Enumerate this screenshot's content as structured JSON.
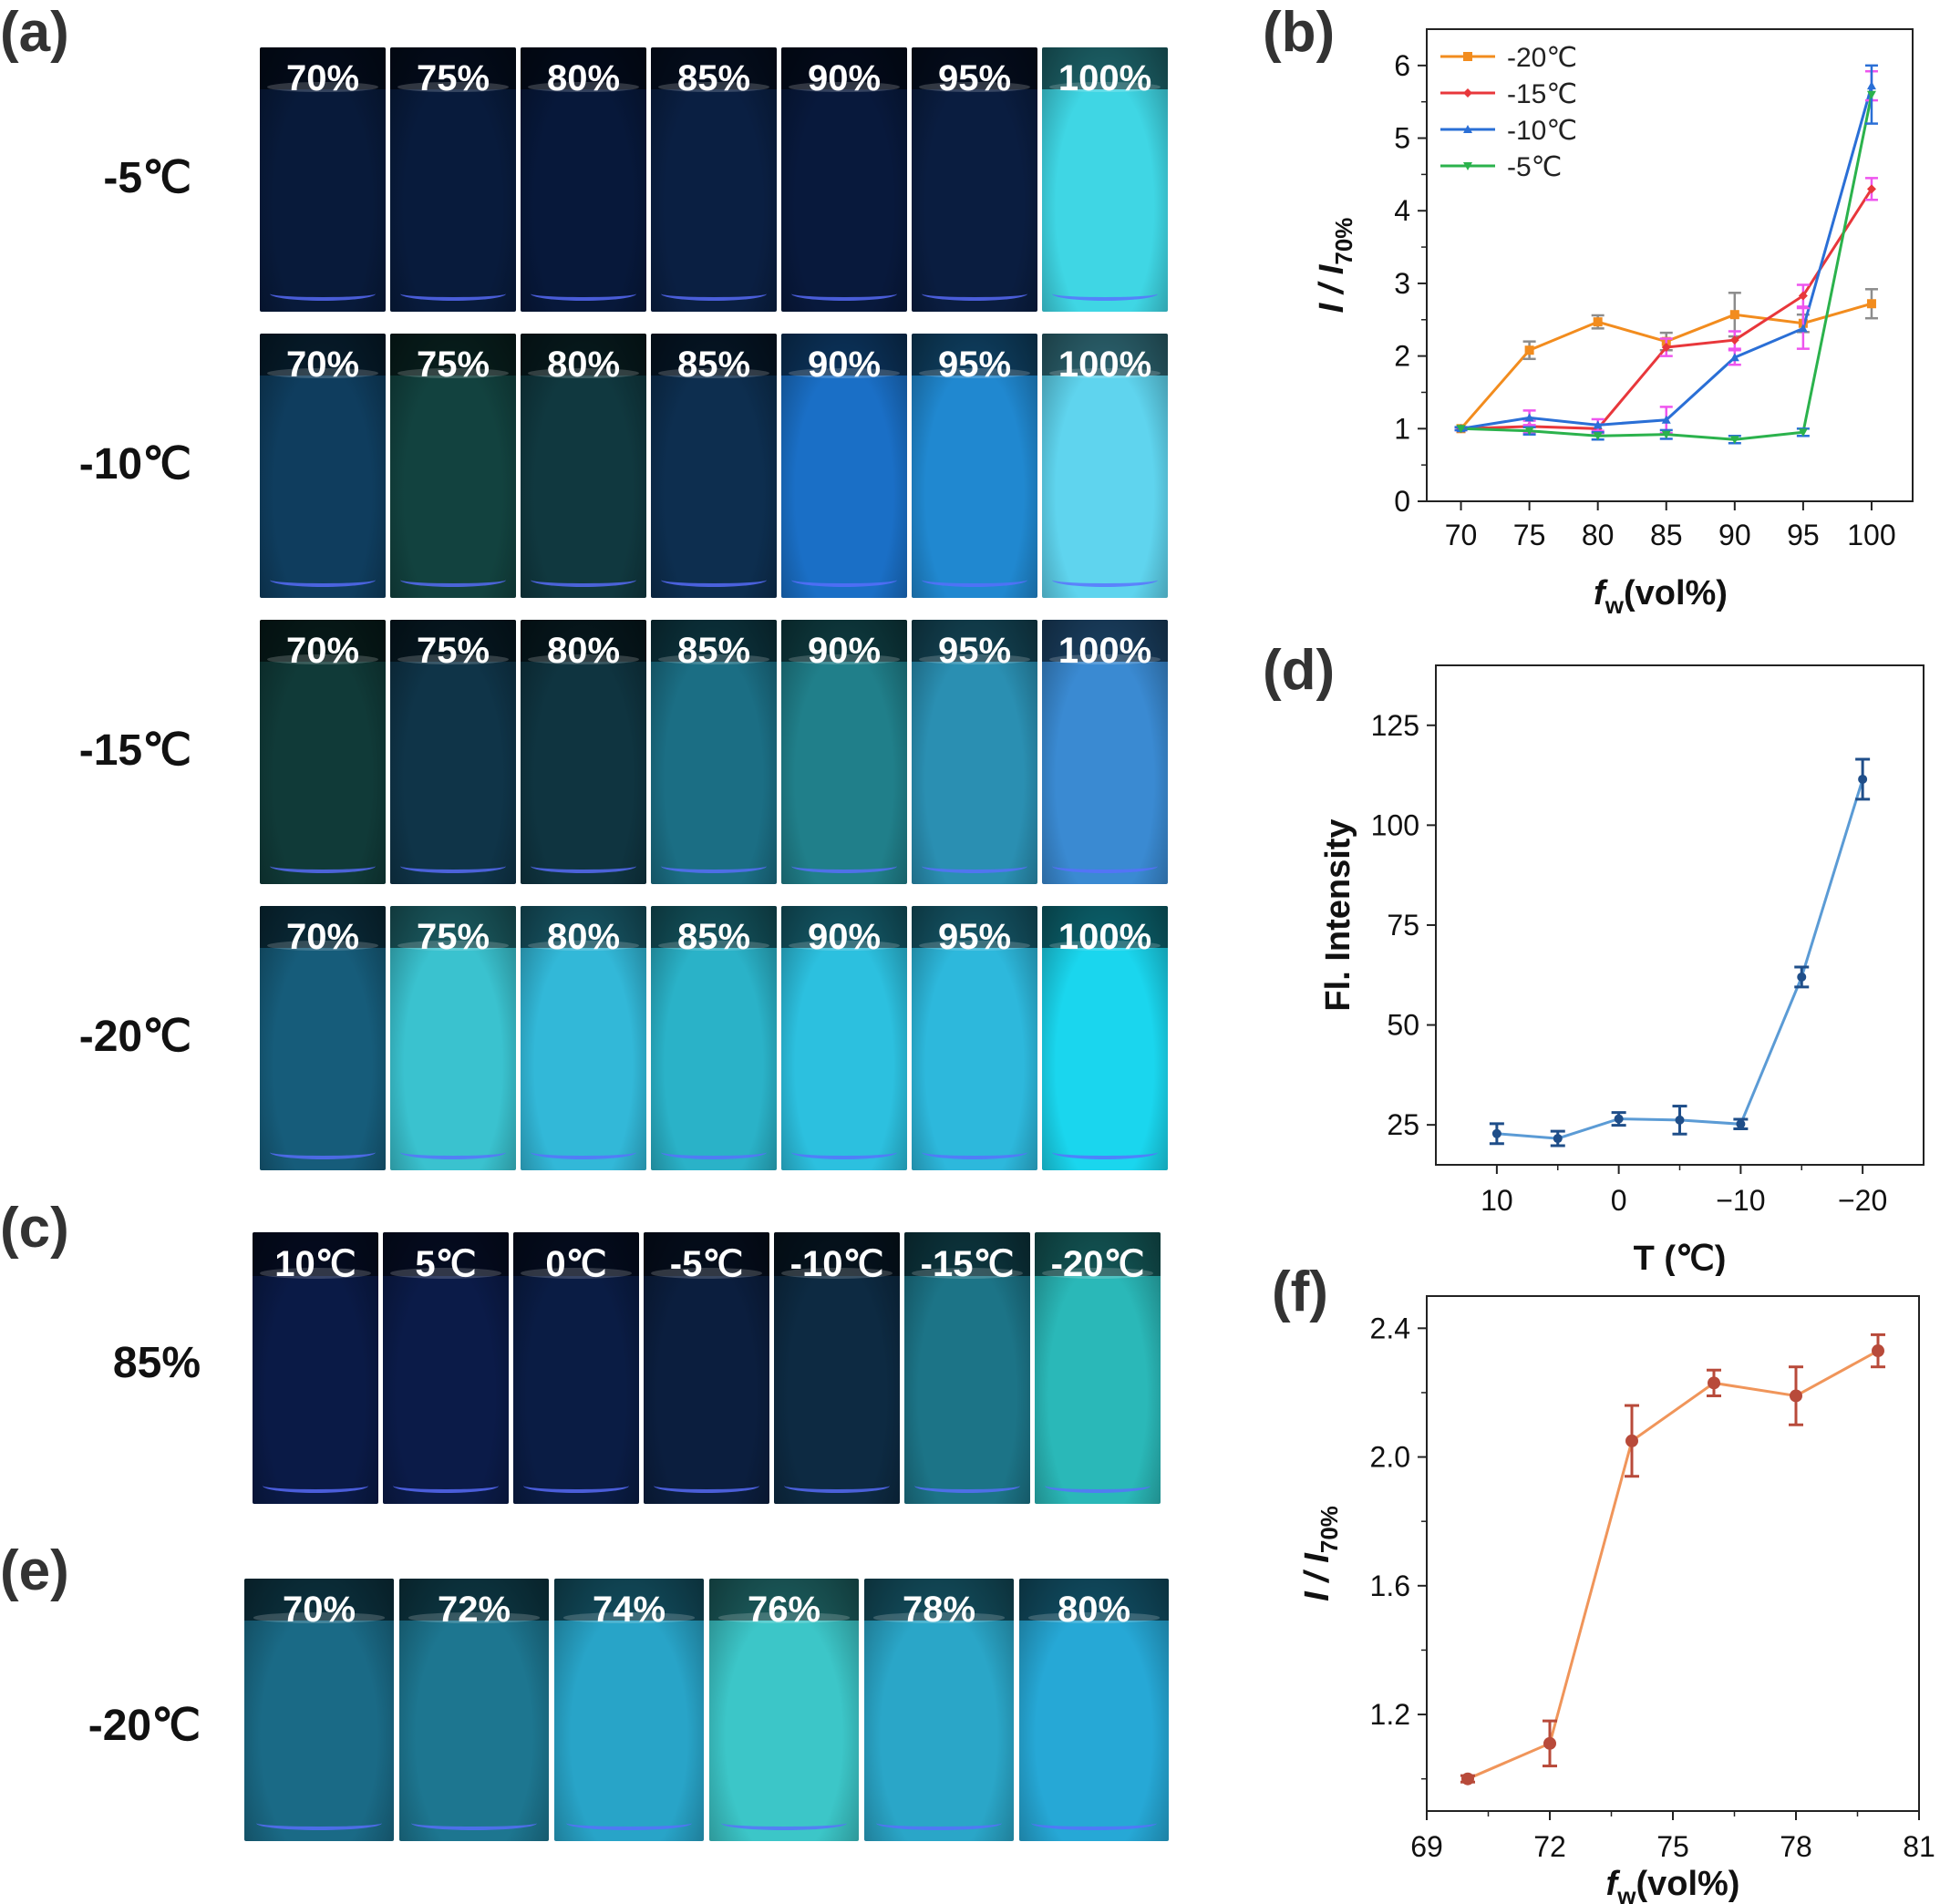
{
  "panels": {
    "a": {
      "label": "(a)"
    },
    "b": {
      "label": "(b)"
    },
    "c": {
      "label": "(c)"
    },
    "d": {
      "label": "(d)"
    },
    "e": {
      "label": "(e)"
    },
    "f": {
      "label": "(f)"
    }
  },
  "photo_panel_a": {
    "rows": [
      {
        "row_label": "-5℃",
        "vials": [
          {
            "text": "70%",
            "color": "#081a3a"
          },
          {
            "text": "75%",
            "color": "#081b3c"
          },
          {
            "text": "80%",
            "color": "#07183a"
          },
          {
            "text": "85%",
            "color": "#0a1f42"
          },
          {
            "text": "90%",
            "color": "#08193c"
          },
          {
            "text": "95%",
            "color": "#0a1d40"
          },
          {
            "text": "100%",
            "color": "#3fd6e4"
          }
        ]
      },
      {
        "row_label": "-10℃",
        "vials": [
          {
            "text": "70%",
            "color": "#0f3d5e"
          },
          {
            "text": "75%",
            "color": "#12423f"
          },
          {
            "text": "80%",
            "color": "#10383f"
          },
          {
            "text": "85%",
            "color": "#0d2e4f"
          },
          {
            "text": "90%",
            "color": "#1a6fc6"
          },
          {
            "text": "95%",
            "color": "#2088d0"
          },
          {
            "text": "100%",
            "color": "#5fd4ee"
          }
        ]
      },
      {
        "row_label": "-15℃",
        "vials": [
          {
            "text": "70%",
            "color": "#103a38"
          },
          {
            "text": "75%",
            "color": "#0f3448"
          },
          {
            "text": "80%",
            "color": "#0f3440"
          },
          {
            "text": "85%",
            "color": "#1b6e84"
          },
          {
            "text": "90%",
            "color": "#207f8a"
          },
          {
            "text": "95%",
            "color": "#2a8fb2"
          },
          {
            "text": "100%",
            "color": "#3a8ad2"
          }
        ]
      },
      {
        "row_label": "-20℃",
        "vials": [
          {
            "text": "70%",
            "color": "#165c7a"
          },
          {
            "text": "75%",
            "color": "#3ac2cf"
          },
          {
            "text": "80%",
            "color": "#32b8d8"
          },
          {
            "text": "85%",
            "color": "#2ab2c8"
          },
          {
            "text": "90%",
            "color": "#2cc0df"
          },
          {
            "text": "95%",
            "color": "#2db8dc"
          },
          {
            "text": "100%",
            "color": "#1ad6ee"
          }
        ]
      }
    ]
  },
  "photo_panel_c": {
    "row_label": "85%",
    "vials": [
      {
        "text": "10℃",
        "color": "#0a1a46"
      },
      {
        "text": "5℃",
        "color": "#0b1b48"
      },
      {
        "text": "0℃",
        "color": "#0a1c44"
      },
      {
        "text": "-5℃",
        "color": "#0b1e3e"
      },
      {
        "text": "-10℃",
        "color": "#0d2a42"
      },
      {
        "text": "-15℃",
        "color": "#1c7487"
      },
      {
        "text": "-20℃",
        "color": "#2ab8b8"
      }
    ]
  },
  "photo_panel_e": {
    "row_label": "-20℃",
    "vials": [
      {
        "text": "70%",
        "color": "#1a6a86"
      },
      {
        "text": "72%",
        "color": "#1d7690"
      },
      {
        "text": "74%",
        "color": "#28a4c8"
      },
      {
        "text": "76%",
        "color": "#3cc6c8"
      },
      {
        "text": "78%",
        "color": "#2aa6c8"
      },
      {
        "text": "80%",
        "color": "#26a8d6"
      }
    ]
  },
  "chart_data": [
    {
      "panel": "b",
      "type": "line",
      "xlabel_main": "f",
      "xlabel_sub": "w",
      "xlabel_rest": "(vol%)",
      "ylabel_main": "I / I",
      "ylabel_sub": "70%",
      "x": [
        70,
        75,
        80,
        85,
        90,
        95,
        100
      ],
      "xticks": [
        "70",
        "75",
        "80",
        "85",
        "90",
        "95",
        "100"
      ],
      "yticks": [
        "0",
        "1",
        "2",
        "3",
        "4",
        "5",
        "6"
      ],
      "xlim": [
        67.5,
        103
      ],
      "ylim": [
        0,
        6.5
      ],
      "legend_position": "top-left",
      "series": [
        {
          "name": "-20℃",
          "color": "#f28c1e",
          "marker": "square",
          "err_color": "#8c8c8c",
          "values": [
            1.0,
            2.08,
            2.47,
            2.2,
            2.57,
            2.45,
            2.72
          ],
          "errors": [
            0.02,
            0.12,
            0.09,
            0.12,
            0.3,
            0.12,
            0.2
          ]
        },
        {
          "name": "-15℃",
          "color": "#e8373b",
          "marker": "diamond",
          "err_color": "#ee55ee",
          "values": [
            1.0,
            1.03,
            1.0,
            2.12,
            2.22,
            2.83,
            4.3
          ],
          "errors": [
            0.02,
            0.08,
            0.06,
            0.12,
            0.12,
            0.15,
            0.15
          ]
        },
        {
          "name": "-10℃",
          "color": "#2a6fd6",
          "marker": "triangle-up",
          "err_color": "#ee55ee",
          "values": [
            1.0,
            1.15,
            1.05,
            1.12,
            1.98,
            2.38,
            5.72
          ],
          "errors": [
            0.02,
            0.1,
            0.08,
            0.18,
            0.1,
            0.28,
            0.2
          ]
        },
        {
          "name": "-5℃",
          "color": "#2bb24c",
          "marker": "triangle-down",
          "err_color": "#2a6fd6",
          "values": [
            1.0,
            0.97,
            0.9,
            0.92,
            0.85,
            0.95,
            5.6
          ],
          "errors": [
            0.02,
            0.05,
            0.05,
            0.06,
            0.05,
            0.05,
            0.4
          ]
        }
      ]
    },
    {
      "panel": "d",
      "type": "line",
      "xlabel": "T (℃)",
      "ylabel": "Fl. Intensity",
      "x": [
        10,
        5,
        0,
        -5,
        -10,
        -15,
        -20
      ],
      "xlim": [
        15,
        -25
      ],
      "ylim": [
        15,
        140
      ],
      "xticks": [
        "10",
        "0",
        "−10",
        "−20"
      ],
      "xtick_values": [
        10,
        0,
        -10,
        -20
      ],
      "yticks": [
        "25",
        "50",
        "75",
        "100",
        "125"
      ],
      "ytick_values": [
        25,
        50,
        75,
        100,
        125
      ],
      "color": "#5b9bd5",
      "marker_color": "#1f4e89",
      "values": [
        22.8,
        21.6,
        26.5,
        26.2,
        25.2,
        62,
        111.5
      ],
      "errors": [
        2.5,
        1.8,
        1.6,
        3.5,
        1.2,
        2.5,
        5.0
      ]
    },
    {
      "panel": "f",
      "type": "line",
      "xlabel_main": "f",
      "xlabel_sub": "w",
      "xlabel_rest": "(vol%)",
      "ylabel_main": "I / I",
      "ylabel_sub": "70%",
      "x": [
        70,
        72,
        74,
        76,
        78,
        80
      ],
      "xlim": [
        69,
        81
      ],
      "ylim": [
        0.9,
        2.5
      ],
      "xticks": [
        "69",
        "72",
        "75",
        "78",
        "81"
      ],
      "xtick_values": [
        69,
        72,
        75,
        78,
        81
      ],
      "yticks": [
        "1.2",
        "1.6",
        "2.0",
        "2.4"
      ],
      "ytick_values": [
        1.2,
        1.6,
        2.0,
        2.4
      ],
      "color": "#f0955a",
      "marker_color": "#b84a3a",
      "values": [
        1.0,
        1.11,
        2.05,
        2.23,
        2.19,
        2.33
      ],
      "errors": [
        0.01,
        0.07,
        0.11,
        0.04,
        0.09,
        0.05
      ]
    }
  ]
}
